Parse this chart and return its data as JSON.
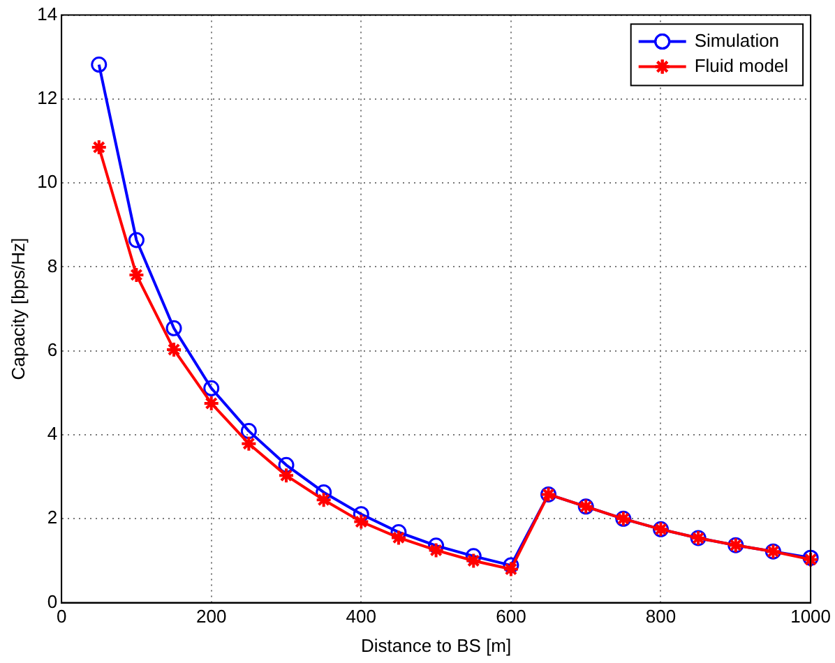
{
  "chart_data": {
    "type": "line",
    "xlabel": "Distance to BS [m]",
    "ylabel": "Capacity [bps/Hz]",
    "x": [
      50,
      100,
      150,
      200,
      250,
      300,
      350,
      400,
      450,
      500,
      550,
      600,
      650,
      700,
      750,
      800,
      850,
      900,
      950,
      1000
    ],
    "series": [
      {
        "name": "Simulation",
        "color": "#0000ff",
        "marker": "circle",
        "values": [
          12.82,
          8.64,
          6.54,
          5.11,
          4.09,
          3.28,
          2.63,
          2.11,
          1.68,
          1.36,
          1.11,
          0.89,
          2.58,
          2.29,
          2.0,
          1.75,
          1.54,
          1.37,
          1.22,
          1.07
        ]
      },
      {
        "name": "Fluid model",
        "color": "#ff0000",
        "marker": "cross",
        "values": [
          10.85,
          7.81,
          6.03,
          4.75,
          3.79,
          3.03,
          2.45,
          1.93,
          1.55,
          1.25,
          1.0,
          0.8,
          2.58,
          2.29,
          2.0,
          1.75,
          1.54,
          1.37,
          1.22,
          1.03
        ]
      }
    ],
    "xlim": [
      0,
      1000
    ],
    "xticks": [
      0,
      200,
      400,
      600,
      800,
      1000
    ],
    "ylim": [
      0,
      14
    ],
    "yticks": [
      0,
      2,
      4,
      6,
      8,
      10,
      12,
      14
    ],
    "grid": true,
    "legend": "top right",
    "line_style": "solid"
  }
}
